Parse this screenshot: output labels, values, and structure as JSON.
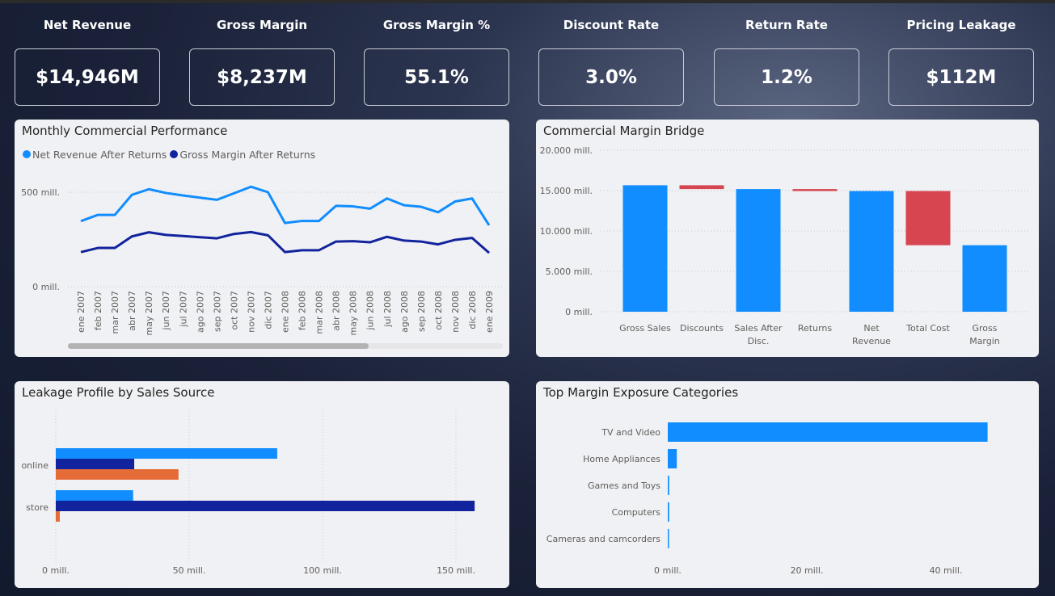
{
  "kpis": [
    {
      "label": "Net Revenue",
      "value": "$14,946M"
    },
    {
      "label": "Gross Margin",
      "value": "$8,237M"
    },
    {
      "label": "Gross Margin %",
      "value": "55.1%"
    },
    {
      "label": "Discount Rate",
      "value": "3.0%"
    },
    {
      "label": "Return Rate",
      "value": "1.2%"
    },
    {
      "label": "Pricing Leakage",
      "value": "$112M"
    }
  ],
  "colors": {
    "blue": "#118dff",
    "navy": "#12239e",
    "orange": "#e66c37",
    "red": "#d64550"
  },
  "chart_data": [
    {
      "type": "line",
      "title": "Monthly Commercial Performance",
      "legend_position": "top-left",
      "categories": [
        "ene 2007",
        "feb 2007",
        "mar 2007",
        "abr 2007",
        "may 2007",
        "jun 2007",
        "jul 2007",
        "ago 2007",
        "sep 2007",
        "oct 2007",
        "nov 2007",
        "dic 2007",
        "ene 2008",
        "feb 2008",
        "mar 2008",
        "abr 2008",
        "may 2008",
        "jun 2008",
        "jul 2008",
        "ago 2008",
        "sep 2008",
        "oct 2008",
        "nov 2008",
        "dic 2008",
        "ene 2009"
      ],
      "series": [
        {
          "name": "Net Revenue After Returns",
          "color": "#118dff",
          "values": [
            347,
            380,
            380,
            486,
            516,
            496,
            483,
            471,
            460,
            494,
            529,
            500,
            337,
            348,
            348,
            428,
            425,
            413,
            467,
            431,
            423,
            394,
            451,
            467,
            325
          ]
        },
        {
          "name": "Gross Margin After Returns",
          "color": "#12239e",
          "values": [
            183,
            205,
            205,
            266,
            288,
            274,
            268,
            262,
            256,
            279,
            289,
            272,
            183,
            193,
            193,
            239,
            241,
            235,
            264,
            244,
            239,
            224,
            248,
            258,
            179
          ]
        }
      ],
      "yticks": [
        {
          "value": 0,
          "label": "0 mill."
        },
        {
          "value": 500,
          "label": "500 mill."
        }
      ],
      "ylim": [
        0,
        500
      ],
      "grid": true,
      "horizontal_scrollbar": true
    },
    {
      "type": "waterfall",
      "title": "Commercial Margin Bridge",
      "categories": [
        "Gross Sales",
        "Discounts",
        "Sales After Disc.",
        "Returns",
        "Net Revenue",
        "Total Cost",
        "Gross Margin"
      ],
      "category_lines": [
        [
          "Gross Sales"
        ],
        [
          "Discounts"
        ],
        [
          "Sales After",
          "Disc."
        ],
        [
          "Returns"
        ],
        [
          "Net",
          "Revenue"
        ],
        [
          "Total Cost"
        ],
        [
          "Gross",
          "Margin"
        ]
      ],
      "bars": [
        {
          "kind": "total",
          "start": 0,
          "end": 15660
        },
        {
          "kind": "decrease",
          "start": 15660,
          "end": 15190
        },
        {
          "kind": "total",
          "start": 0,
          "end": 15190
        },
        {
          "kind": "decrease",
          "start": 15190,
          "end": 14946
        },
        {
          "kind": "total",
          "start": 0,
          "end": 14946
        },
        {
          "kind": "decrease",
          "start": 14946,
          "end": 8237
        },
        {
          "kind": "total",
          "start": 0,
          "end": 8237
        }
      ],
      "yticks": [
        {
          "value": 0,
          "label": "0 mill."
        },
        {
          "value": 5000,
          "label": "5.000 mill."
        },
        {
          "value": 10000,
          "label": "10.000 mill."
        },
        {
          "value": 15000,
          "label": "15.000 mill."
        },
        {
          "value": 20000,
          "label": "20.000 mill."
        }
      ],
      "ylim": [
        0,
        20000
      ],
      "grid": true
    },
    {
      "type": "bar",
      "orientation": "horizontal",
      "title": "Leakage Profile by Sales Source",
      "categories": [
        "online",
        "store"
      ],
      "series": [
        {
          "color": "#118dff",
          "values": [
            83,
            29
          ]
        },
        {
          "color": "#12239e",
          "values": [
            29.4,
            157
          ]
        },
        {
          "color": "#e66c37",
          "values": [
            46,
            1.5
          ]
        }
      ],
      "xticks": [
        {
          "value": 0,
          "label": "0 mill."
        },
        {
          "value": 50,
          "label": "50 mill."
        },
        {
          "value": 100,
          "label": "100 mill."
        },
        {
          "value": 150,
          "label": "150 mill."
        }
      ],
      "xlim": [
        0,
        160
      ],
      "grid": true
    },
    {
      "type": "bar",
      "orientation": "horizontal",
      "title": "Top Margin Exposure Categories",
      "categories": [
        "TV and Video",
        "Home Appliances",
        "Games and Toys",
        "Computers",
        "Cameras and camcorders"
      ],
      "values": [
        46.0,
        1.3,
        0.2,
        0.2,
        0.15
      ],
      "color": "#118dff",
      "xticks": [
        {
          "value": 0,
          "label": "0 mill."
        },
        {
          "value": 20,
          "label": "20 mill."
        },
        {
          "value": 40,
          "label": "40 mill."
        }
      ],
      "xlim": [
        0,
        50
      ],
      "grid": false
    }
  ]
}
